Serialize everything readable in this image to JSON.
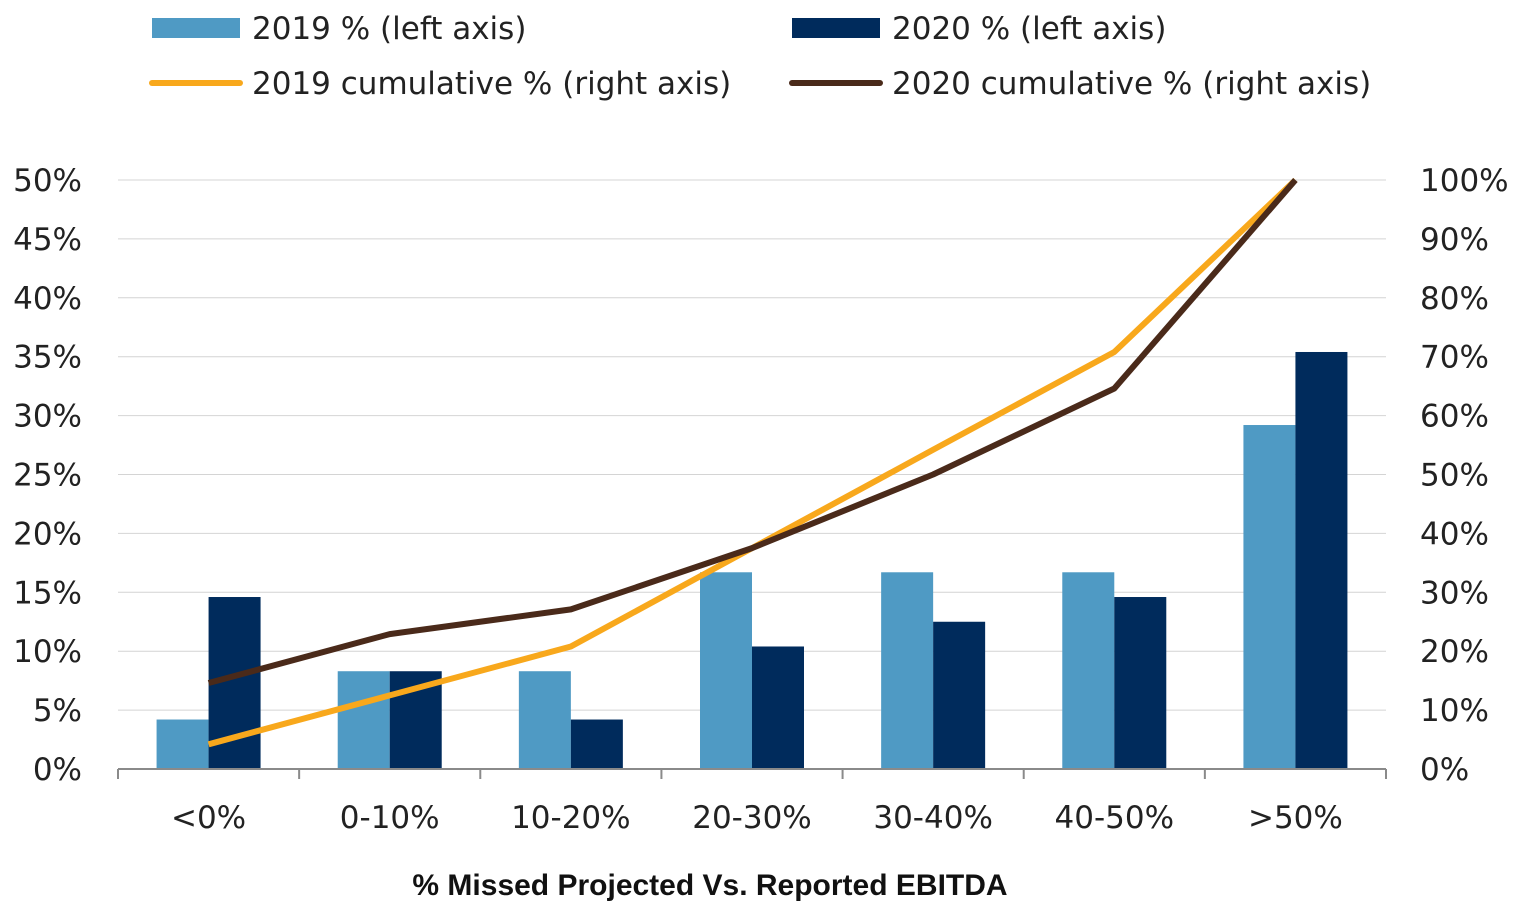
{
  "chart_data": {
    "type": "bar",
    "categories": [
      "<0%",
      "0-10%",
      "10-20%",
      "20-30%",
      "30-40%",
      "40-50%",
      ">50%"
    ],
    "series": [
      {
        "name": "2019 % (left axis)",
        "kind": "bar",
        "axis": "left",
        "color": "#4f9ac4",
        "values": [
          4.2,
          8.3,
          8.3,
          16.7,
          16.7,
          16.7,
          29.2
        ]
      },
      {
        "name": "2020 % (left axis)",
        "kind": "bar",
        "axis": "left",
        "color": "#002b5c",
        "values": [
          14.6,
          8.3,
          4.2,
          10.4,
          12.5,
          14.6,
          35.4
        ]
      },
      {
        "name": "2019 cumulative % (right axis)",
        "kind": "line",
        "axis": "right",
        "color": "#f8a81c",
        "values": [
          4.2,
          12.5,
          20.8,
          37.5,
          54.2,
          70.8,
          100
        ]
      },
      {
        "name": "2020 cumulative % (right axis)",
        "kind": "line",
        "axis": "right",
        "color": "#4a2a1a",
        "values": [
          14.6,
          22.9,
          27.1,
          37.5,
          50.0,
          64.6,
          100
        ]
      }
    ],
    "xlabel": "% Missed Projected Vs. Reported EBITDA",
    "ylim_left": [
      0,
      50
    ],
    "ylim_right": [
      0,
      100
    ],
    "yticks_left": [
      "0%",
      "5%",
      "10%",
      "15%",
      "20%",
      "25%",
      "30%",
      "35%",
      "40%",
      "45%",
      "50%"
    ],
    "yticks_right": [
      "0%",
      "10%",
      "20%",
      "30%",
      "40%",
      "50%",
      "60%",
      "70%",
      "80%",
      "90%",
      "100%"
    ],
    "grid": true,
    "legend_position": "top"
  }
}
